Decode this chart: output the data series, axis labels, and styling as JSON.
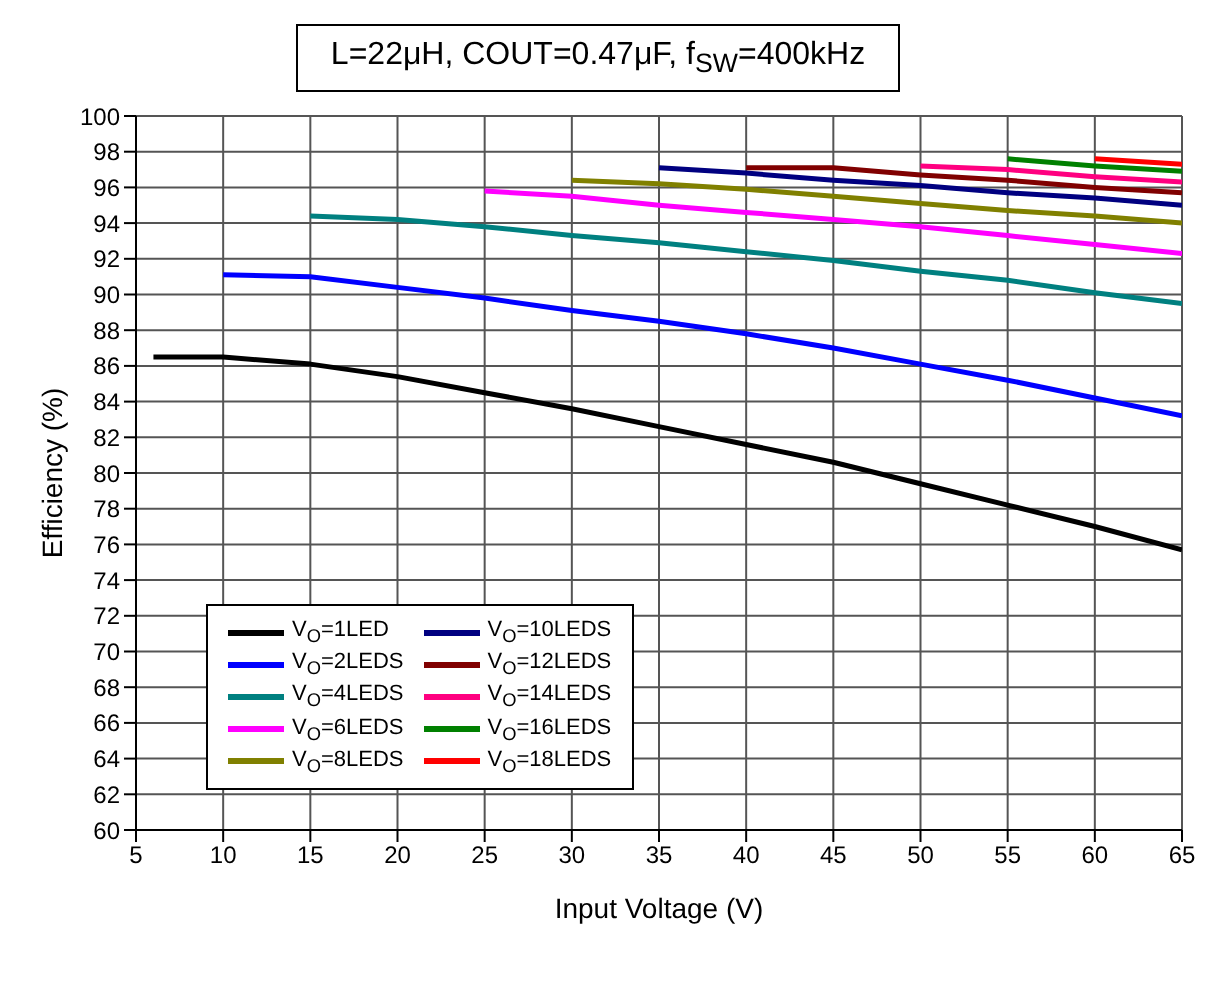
{
  "chart_data": {
    "type": "line",
    "title": "L=22μH, COUT=0.47μF, f$_{SW}$=400kHz",
    "xlabel": "Input Voltage (V)",
    "ylabel": "Efficiency (%)",
    "xlim": [
      5,
      65
    ],
    "xticks": [
      5,
      10,
      15,
      20,
      25,
      30,
      35,
      40,
      45,
      50,
      55,
      60,
      65
    ],
    "ylim": [
      60,
      100
    ],
    "yticks": [
      60,
      62,
      64,
      66,
      68,
      70,
      72,
      74,
      76,
      78,
      80,
      82,
      84,
      86,
      88,
      90,
      92,
      94,
      96,
      98,
      100
    ],
    "grid": true,
    "legend": "bottom left",
    "marker": "none",
    "line_style": "solid",
    "series": [
      {
        "name": "V$_{O}$=1LED",
        "color": "#000000",
        "x": [
          6,
          10,
          15,
          20,
          25,
          30,
          35,
          40,
          45,
          50,
          55,
          60,
          65
        ],
        "values": [
          86.5,
          86.5,
          86.1,
          85.4,
          84.5,
          83.6,
          82.6,
          81.6,
          80.6,
          79.4,
          78.2,
          77.0,
          75.7
        ]
      },
      {
        "name": "V$_{O}$=2LEDS",
        "color": "#0000ff",
        "x": [
          10,
          15,
          20,
          25,
          30,
          35,
          40,
          45,
          50,
          55,
          60,
          65
        ],
        "values": [
          91.1,
          91.0,
          90.4,
          89.8,
          89.1,
          88.5,
          87.8,
          87.0,
          86.1,
          85.2,
          84.2,
          83.2
        ]
      },
      {
        "name": "V$_{O}$=4LEDS",
        "color": "#008080",
        "x": [
          15,
          20,
          25,
          30,
          35,
          40,
          45,
          50,
          55,
          60,
          65
        ],
        "values": [
          94.4,
          94.2,
          93.8,
          93.3,
          92.9,
          92.4,
          91.9,
          91.3,
          90.8,
          90.1,
          89.5
        ]
      },
      {
        "name": "V$_{O}$=6LEDS",
        "color": "#ff00ff",
        "x": [
          25,
          30,
          35,
          40,
          45,
          50,
          55,
          60,
          65
        ],
        "values": [
          95.8,
          95.5,
          95.0,
          94.6,
          94.2,
          93.8,
          93.3,
          92.8,
          92.3
        ]
      },
      {
        "name": "V$_{O}$=8LEDS",
        "color": "#808000",
        "x": [
          30,
          35,
          40,
          45,
          50,
          55,
          60,
          65
        ],
        "values": [
          96.4,
          96.2,
          95.9,
          95.5,
          95.1,
          94.7,
          94.4,
          94.0
        ]
      },
      {
        "name": "V$_{O}$=10LEDS",
        "color": "#000080",
        "x": [
          35,
          40,
          45,
          50,
          55,
          60,
          65
        ],
        "values": [
          97.1,
          96.8,
          96.4,
          96.1,
          95.7,
          95.4,
          95.0
        ]
      },
      {
        "name": "V$_{O}$=12LEDS",
        "color": "#800000",
        "x": [
          40,
          45,
          50,
          55,
          60,
          65
        ],
        "values": [
          97.1,
          97.1,
          96.7,
          96.4,
          96.0,
          95.7
        ]
      },
      {
        "name": "V$_{O}$=14LEDS",
        "color": "#ff0080",
        "x": [
          50,
          55,
          60,
          65
        ],
        "values": [
          97.2,
          97.0,
          96.6,
          96.3
        ]
      },
      {
        "name": "V$_{O}$=16LEDS",
        "color": "#008000",
        "x": [
          55,
          60,
          65
        ],
        "values": [
          97.6,
          97.2,
          96.9
        ]
      },
      {
        "name": "V$_{O}$=18LEDS",
        "color": "#ff0000",
        "x": [
          60,
          65
        ],
        "values": [
          97.6,
          97.3
        ]
      }
    ]
  }
}
